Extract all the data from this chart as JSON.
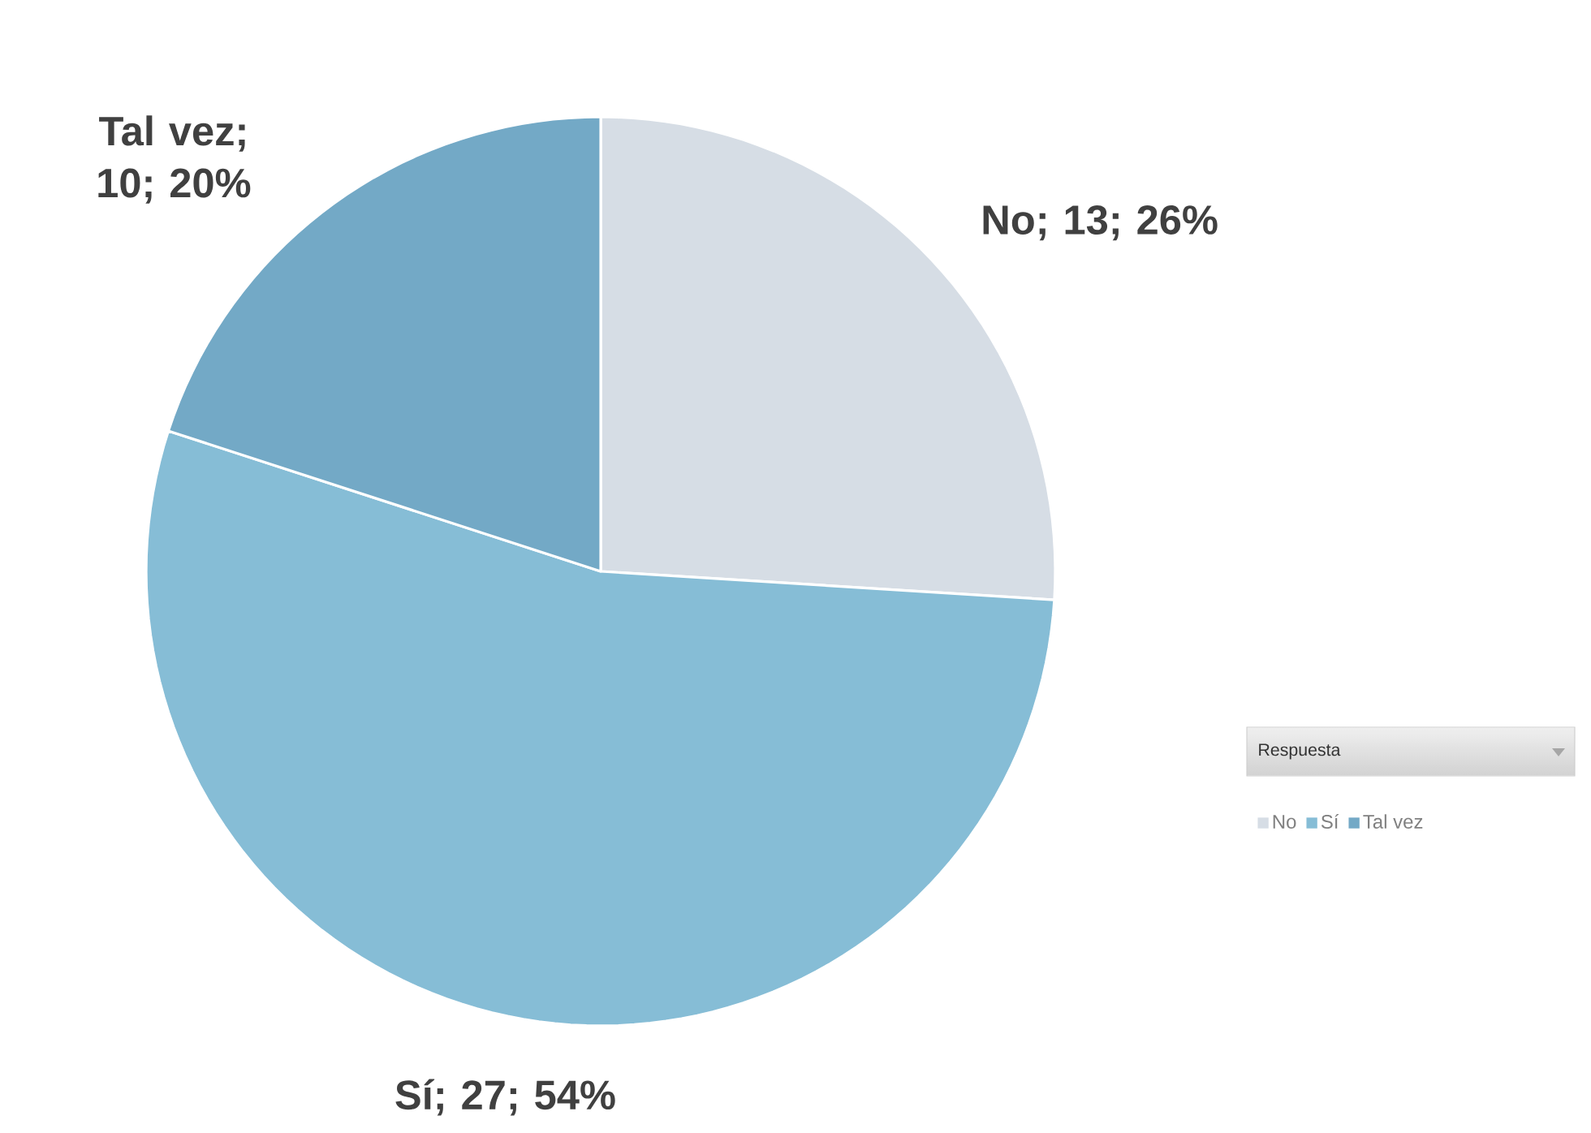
{
  "chart_data": {
    "type": "pie",
    "categories": [
      "No",
      "Sí",
      "Tal vez"
    ],
    "values": [
      13,
      27,
      10
    ],
    "colors": [
      "#d6dde5",
      "#86bdd6",
      "#73a9c6"
    ],
    "value_labels": [
      "No; 13; 26%",
      "Sí; 27; 54%",
      "Tal vez; 10; 20%"
    ],
    "legend_title": "Respuesta",
    "legend": "right"
  }
}
